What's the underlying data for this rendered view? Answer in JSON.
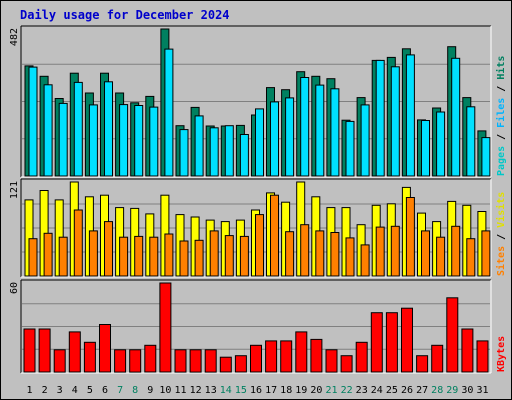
{
  "chart_data": {
    "type": "bar",
    "title": "Daily usage for December 2024",
    "categories": [
      "1",
      "2",
      "3",
      "4",
      "5",
      "6",
      "7",
      "8",
      "9",
      "10",
      "11",
      "12",
      "13",
      "14",
      "15",
      "16",
      "17",
      "18",
      "19",
      "20",
      "21",
      "22",
      "23",
      "24",
      "25",
      "26",
      "27",
      "28",
      "29",
      "30",
      "31"
    ],
    "weekend_days": [
      "7",
      "8",
      "14",
      "15",
      "21",
      "22",
      "28",
      "29"
    ],
    "panels": [
      {
        "id": "hits-files-pages",
        "ymax_label": "482",
        "ymax": 482,
        "right_label": [
          {
            "text": "Pages",
            "color": "#00c8c8"
          },
          {
            "text": " / ",
            "color": "#000000"
          },
          {
            "text": "Files",
            "color": "#00b4ff"
          },
          {
            "text": " / ",
            "color": "#000000"
          },
          {
            "text": "Hits",
            "color": "#008060"
          }
        ],
        "series": [
          {
            "name": "Hits",
            "color": "#008060",
            "values": [
              361,
              327,
              254,
              337,
              272,
              337,
              272,
              240,
              261,
              482,
              165,
              225,
              164,
              164,
              166,
              200,
              290,
              283,
              342,
              327,
              319,
              183,
              257,
              379,
              389,
              417,
              184,
              223,
              424,
              257,
              148
            ]
          },
          {
            "name": "Files",
            "color": "#00e0ff",
            "values": [
              357,
              299,
              238,
              307,
              233,
              309,
              234,
              231,
              226,
              416,
              152,
              197,
              158,
              165,
              136,
              220,
              243,
              256,
              323,
              298,
              286,
              179,
              233,
              379,
              358,
              397,
              182,
              210,
              386,
              227,
              126
            ]
          }
        ]
      },
      {
        "id": "visits-sites",
        "ymax_label": "121",
        "ymax": 121,
        "right_label": [
          {
            "text": "Sites",
            "color": "#ff8000"
          },
          {
            "text": " / ",
            "color": "#000000"
          },
          {
            "text": "Visits",
            "color": "#e0e000"
          }
        ],
        "series": [
          {
            "name": "Visits",
            "color": "#ffff00",
            "values": [
              98,
              110,
              98,
              121,
              102,
              104,
              88,
              87,
              80,
              104,
              79,
              76,
              72,
              70,
              72,
              85,
              107,
              95,
              121,
              102,
              88,
              88,
              66,
              91,
              93,
              114,
              81,
              70,
              96,
              91,
              83
            ]
          },
          {
            "name": "Sites",
            "color": "#ff8000",
            "values": [
              48,
              55,
              50,
              85,
              58,
              70,
              50,
              51,
              50,
              54,
              45,
              46,
              58,
              52,
              51,
              79,
              104,
              57,
              66,
              58,
              56,
              49,
              40,
              63,
              64,
              101,
              58,
              50,
              64,
              48,
              58
            ]
          }
        ]
      },
      {
        "id": "kbytes",
        "ymax_label": "60",
        "ymax": 60,
        "right_label": [
          {
            "text": "KBytes",
            "color": "#ff0000"
          }
        ],
        "series": [
          {
            "name": "KBytes",
            "color": "#ff0000",
            "values": [
              29,
              29,
              15,
              27,
              20,
              32,
              15,
              15,
              18,
              60,
              15,
              15,
              15,
              10,
              11,
              18,
              21,
              21,
              27,
              22,
              15,
              11,
              20,
              40,
              40,
              43,
              11,
              18,
              50,
              29,
              21
            ]
          }
        ]
      }
    ]
  },
  "colors": {
    "background": "#c0c0c0",
    "plot_bg": "#c0c0c0",
    "title": "#0000cc",
    "xtick_weekday": "#000000",
    "xtick_weekend": "#008060",
    "gridline": "#808080"
  }
}
